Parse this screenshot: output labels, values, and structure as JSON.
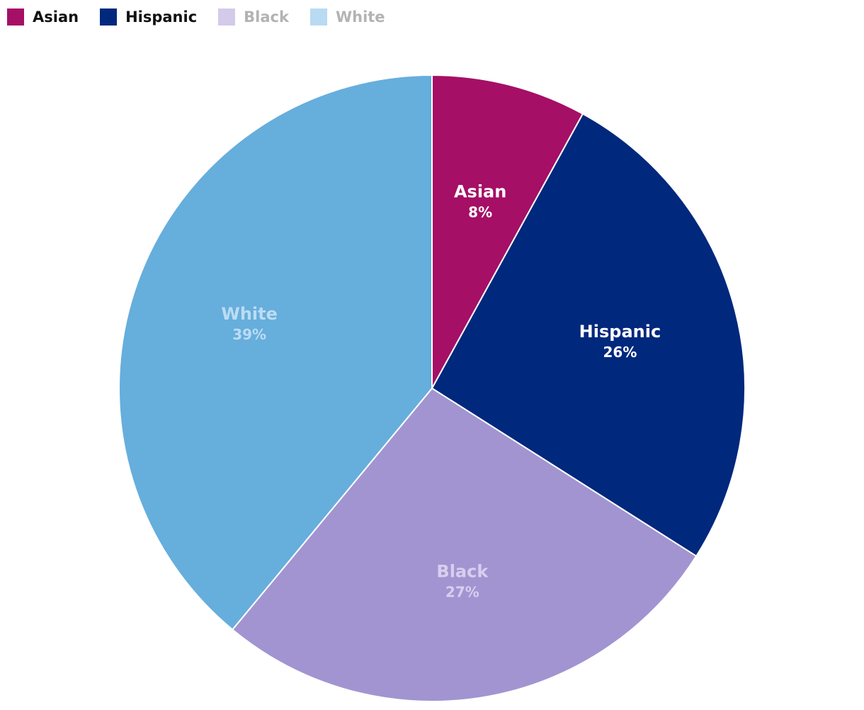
{
  "legend": {
    "items": [
      {
        "label": "Asian",
        "swatch": "#a50f66",
        "dimmed": false
      },
      {
        "label": "Hispanic",
        "swatch": "#00287d",
        "dimmed": false
      },
      {
        "label": "Black",
        "swatch": "#d3cbe9",
        "dimmed": true
      },
      {
        "label": "White",
        "swatch": "#b8daf2",
        "dimmed": true
      }
    ]
  },
  "chart_data": {
    "type": "pie",
    "title": "",
    "start_angle_deg": 0,
    "direction": "clockwise",
    "legend_position": "top-left",
    "slices": [
      {
        "label": "Asian",
        "value": 8,
        "display": "8%",
        "color": "#a50f66",
        "label_color": "#ffffff"
      },
      {
        "label": "Hispanic",
        "value": 26,
        "display": "26%",
        "color": "#00287d",
        "label_color": "#ffffff"
      },
      {
        "label": "Black",
        "value": 27,
        "display": "27%",
        "color": "#a294d1",
        "label_color": "#d7cfee"
      },
      {
        "label": "White",
        "value": 39,
        "display": "39%",
        "color": "#66aedc",
        "label_color": "#bcdcf3"
      }
    ]
  }
}
